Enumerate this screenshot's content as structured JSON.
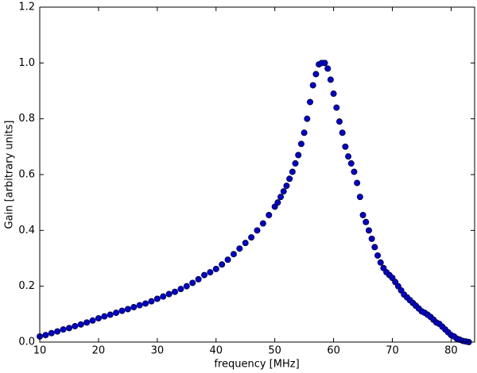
{
  "chart_data": {
    "type": "scatter",
    "xlabel": "frequency [MHz]",
    "ylabel": "Gain [arbitrary units]",
    "color": "#0000cc",
    "edgecolor": "#000033",
    "xlim": [
      10,
      84
    ],
    "ylim": [
      0,
      1.2
    ],
    "xticks": [
      10,
      20,
      30,
      40,
      50,
      60,
      70,
      80
    ],
    "yticks": [
      {
        "value": 0,
        "label": "0.0"
      },
      0.2,
      0.4,
      0.6,
      0.8,
      {
        "value": 1,
        "label": "1.0"
      },
      1.2
    ],
    "x": [
      10,
      11,
      12,
      13,
      14,
      15,
      16,
      17,
      18,
      19,
      20,
      21,
      22,
      23,
      24,
      25,
      26,
      27,
      28,
      29,
      30,
      31,
      32,
      33,
      34,
      35,
      36,
      37,
      38,
      39,
      40,
      41,
      42,
      43,
      44,
      45,
      46,
      47,
      48,
      49,
      50,
      50.5,
      51,
      51.5,
      52,
      52.5,
      53,
      53.5,
      54,
      54.5,
      55,
      55.5,
      56,
      56.5,
      57,
      57.5,
      58,
      58.5,
      59,
      59.5,
      60,
      60.5,
      61,
      61.5,
      62,
      62.5,
      63,
      63.5,
      64,
      64.5,
      65,
      65.5,
      66,
      66.5,
      67,
      67.5,
      68,
      68.5,
      69,
      69.5,
      70,
      70.5,
      71,
      71.5,
      72,
      72.5,
      73,
      73.5,
      74,
      74.5,
      75,
      75.5,
      76,
      76.5,
      77,
      77.5,
      78,
      78.5,
      79,
      79.5,
      80,
      80.5,
      81,
      81.5,
      82,
      82.5,
      83
    ],
    "y": [
      0.02,
      0.025,
      0.032,
      0.038,
      0.045,
      0.05,
      0.057,
      0.063,
      0.07,
      0.077,
      0.085,
      0.092,
      0.098,
      0.105,
      0.112,
      0.118,
      0.125,
      0.132,
      0.138,
      0.146,
      0.155,
      0.163,
      0.172,
      0.18,
      0.19,
      0.2,
      0.212,
      0.225,
      0.24,
      0.25,
      0.262,
      0.278,
      0.295,
      0.315,
      0.335,
      0.355,
      0.375,
      0.4,
      0.425,
      0.455,
      0.485,
      0.5,
      0.52,
      0.54,
      0.56,
      0.585,
      0.61,
      0.64,
      0.67,
      0.71,
      0.75,
      0.8,
      0.86,
      0.92,
      0.96,
      0.995,
      1.0,
      1.0,
      0.98,
      0.94,
      0.89,
      0.84,
      0.79,
      0.75,
      0.7,
      0.665,
      0.64,
      0.61,
      0.57,
      0.52,
      0.455,
      0.43,
      0.4,
      0.37,
      0.34,
      0.31,
      0.285,
      0.265,
      0.25,
      0.24,
      0.23,
      0.215,
      0.2,
      0.185,
      0.17,
      0.16,
      0.15,
      0.14,
      0.13,
      0.12,
      0.11,
      0.105,
      0.098,
      0.09,
      0.08,
      0.07,
      0.065,
      0.055,
      0.045,
      0.035,
      0.025,
      0.02,
      0.012,
      0.008,
      0.004,
      0.002,
      0
    ]
  }
}
